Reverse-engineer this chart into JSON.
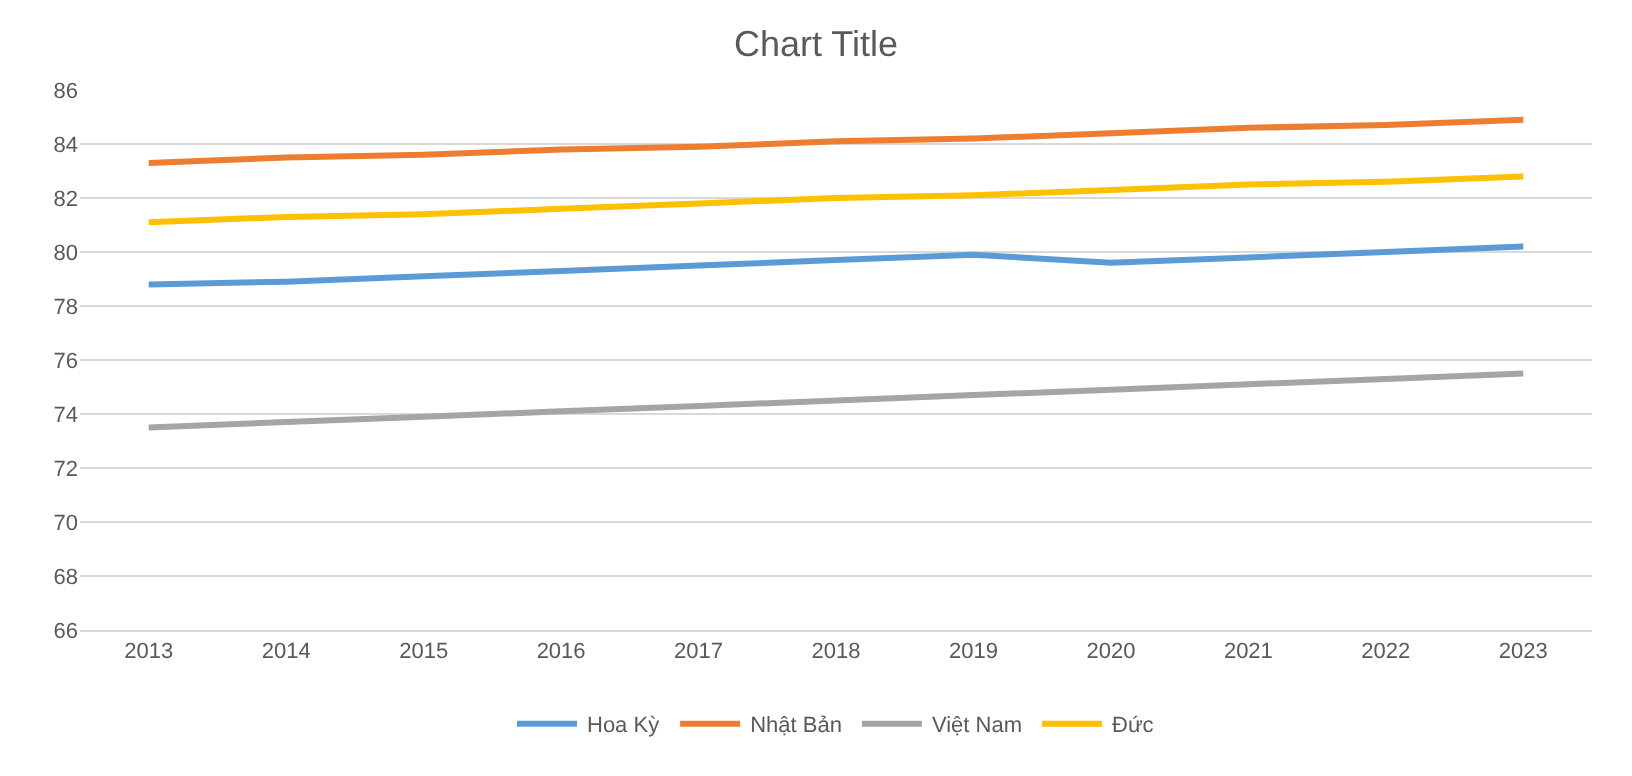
{
  "chart_data": {
    "type": "line",
    "title": "Chart Title",
    "categories": [
      "2013",
      "2014",
      "2015",
      "2016",
      "2017",
      "2018",
      "2019",
      "2020",
      "2021",
      "2022",
      "2023"
    ],
    "series": [
      {
        "name": "Hoa Kỳ",
        "color": "#5b9bd5",
        "values": [
          78.8,
          78.9,
          79.1,
          79.3,
          79.5,
          79.7,
          79.9,
          79.6,
          79.8,
          80.0,
          80.2
        ]
      },
      {
        "name": "Nhật Bản",
        "color": "#ed7d31",
        "values": [
          83.3,
          83.5,
          83.6,
          83.8,
          83.9,
          84.1,
          84.2,
          84.4,
          84.6,
          84.7,
          84.9
        ]
      },
      {
        "name": "Việt Nam",
        "color": "#a5a5a5",
        "values": [
          73.5,
          73.7,
          73.9,
          74.1,
          74.3,
          74.5,
          74.7,
          74.9,
          75.1,
          75.3,
          75.5
        ]
      },
      {
        "name": "Đức",
        "color": "#ffc000",
        "values": [
          81.1,
          81.3,
          81.4,
          81.6,
          81.8,
          82.0,
          82.1,
          82.3,
          82.5,
          82.6,
          82.8
        ]
      }
    ],
    "ylim": [
      66,
      86
    ],
    "yticks": [
      66,
      68,
      70,
      72,
      74,
      76,
      78,
      80,
      82,
      84,
      86
    ],
    "grid": "y",
    "legend": "bottom",
    "marker": "none",
    "line_style": "solid"
  }
}
